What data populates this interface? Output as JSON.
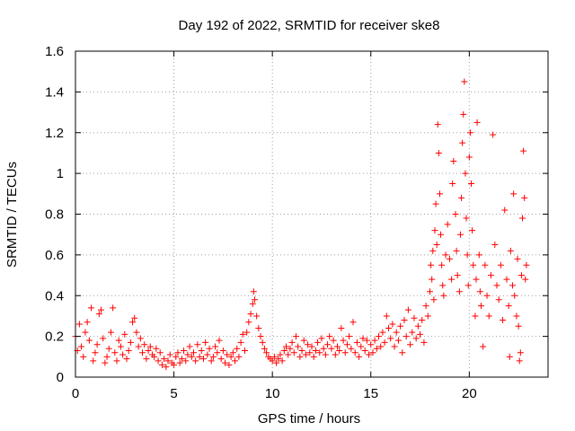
{
  "chart_data": {
    "type": "scatter",
    "title": "Day 192 of 2022, SRMTID for receiver ske8",
    "xlabel": "GPS time / hours",
    "ylabel": "SRMTID / TECUs",
    "xlim": [
      0,
      24
    ],
    "ylim": [
      0,
      1.6
    ],
    "xticks": [
      0,
      5,
      10,
      15,
      20
    ],
    "xtick_labels": [
      "0",
      "5",
      "10",
      "15",
      "20"
    ],
    "yticks": [
      0,
      0.2,
      0.4,
      0.6,
      0.8,
      1,
      1.2,
      1.4,
      1.6
    ],
    "ytick_labels": [
      "0",
      "0.2",
      "0.4",
      "0.6",
      "0.8",
      "1",
      "1.2",
      "1.4",
      "1.6"
    ],
    "grid": true,
    "marker": "+",
    "series_color": "#ff0000",
    "series": [
      {
        "name": "SRMTID",
        "points": [
          [
            0.0,
            0.2
          ],
          [
            0.1,
            0.13
          ],
          [
            0.2,
            0.26
          ],
          [
            0.3,
            0.15
          ],
          [
            0.4,
            0.1
          ],
          [
            0.5,
            0.22
          ],
          [
            0.6,
            0.27
          ],
          [
            0.7,
            0.18
          ],
          [
            0.8,
            0.34
          ],
          [
            0.9,
            0.08
          ],
          [
            1.0,
            0.12
          ],
          [
            1.1,
            0.16
          ],
          [
            1.2,
            0.31
          ],
          [
            1.3,
            0.33
          ],
          [
            1.4,
            0.19
          ],
          [
            1.5,
            0.07
          ],
          [
            1.6,
            0.1
          ],
          [
            1.7,
            0.14
          ],
          [
            1.8,
            0.22
          ],
          [
            1.9,
            0.34
          ],
          [
            2.0,
            0.12
          ],
          [
            2.1,
            0.08
          ],
          [
            2.2,
            0.18
          ],
          [
            2.3,
            0.15
          ],
          [
            2.4,
            0.11
          ],
          [
            2.5,
            0.21
          ],
          [
            2.6,
            0.09
          ],
          [
            2.7,
            0.13
          ],
          [
            2.8,
            0.17
          ],
          [
            2.9,
            0.27
          ],
          [
            3.0,
            0.29
          ],
          [
            3.1,
            0.22
          ],
          [
            3.2,
            0.15
          ],
          [
            3.3,
            0.19
          ],
          [
            3.4,
            0.12
          ],
          [
            3.5,
            0.16
          ],
          [
            3.6,
            0.09
          ],
          [
            3.7,
            0.13
          ],
          [
            3.8,
            0.15
          ],
          [
            3.9,
            0.11
          ],
          [
            4.0,
            0.1
          ],
          [
            4.1,
            0.14
          ],
          [
            4.2,
            0.08
          ],
          [
            4.3,
            0.12
          ],
          [
            4.4,
            0.06
          ],
          [
            4.5,
            0.09
          ],
          [
            4.6,
            0.05
          ],
          [
            4.7,
            0.08
          ],
          [
            4.8,
            0.11
          ],
          [
            4.9,
            0.07
          ],
          [
            5.0,
            0.06
          ],
          [
            5.1,
            0.1
          ],
          [
            5.2,
            0.12
          ],
          [
            5.3,
            0.07
          ],
          [
            5.4,
            0.09
          ],
          [
            5.5,
            0.13
          ],
          [
            5.6,
            0.08
          ],
          [
            5.7,
            0.11
          ],
          [
            5.8,
            0.15
          ],
          [
            5.9,
            0.1
          ],
          [
            6.0,
            0.12
          ],
          [
            6.1,
            0.08
          ],
          [
            6.2,
            0.16
          ],
          [
            6.3,
            0.1
          ],
          [
            6.4,
            0.13
          ],
          [
            6.5,
            0.09
          ],
          [
            6.6,
            0.17
          ],
          [
            6.7,
            0.11
          ],
          [
            6.8,
            0.14
          ],
          [
            6.9,
            0.08
          ],
          [
            7.0,
            0.1
          ],
          [
            7.1,
            0.15
          ],
          [
            7.2,
            0.12
          ],
          [
            7.3,
            0.18
          ],
          [
            7.4,
            0.09
          ],
          [
            7.5,
            0.13
          ],
          [
            7.6,
            0.07
          ],
          [
            7.7,
            0.11
          ],
          [
            7.8,
            0.06
          ],
          [
            7.9,
            0.1
          ],
          [
            8.0,
            0.12
          ],
          [
            8.1,
            0.08
          ],
          [
            8.2,
            0.14
          ],
          [
            8.3,
            0.1
          ],
          [
            8.4,
            0.17
          ],
          [
            8.5,
            0.21
          ],
          [
            8.6,
            0.13
          ],
          [
            8.7,
            0.22
          ],
          [
            8.8,
            0.27
          ],
          [
            8.9,
            0.31
          ],
          [
            9.0,
            0.36
          ],
          [
            9.05,
            0.42
          ],
          [
            9.1,
            0.38
          ],
          [
            9.2,
            0.3
          ],
          [
            9.3,
            0.24
          ],
          [
            9.4,
            0.2
          ],
          [
            9.5,
            0.17
          ],
          [
            9.6,
            0.14
          ],
          [
            9.7,
            0.12
          ],
          [
            9.8,
            0.1
          ],
          [
            9.9,
            0.09
          ],
          [
            10.0,
            0.08
          ],
          [
            10.1,
            0.1
          ],
          [
            10.2,
            0.07
          ],
          [
            10.3,
            0.09
          ],
          [
            10.4,
            0.11
          ],
          [
            10.5,
            0.08
          ],
          [
            10.6,
            0.13
          ],
          [
            10.7,
            0.15
          ],
          [
            10.8,
            0.11
          ],
          [
            10.9,
            0.14
          ],
          [
            11.0,
            0.17
          ],
          [
            11.1,
            0.12
          ],
          [
            11.2,
            0.2
          ],
          [
            11.3,
            0.15
          ],
          [
            11.4,
            0.1
          ],
          [
            11.5,
            0.13
          ],
          [
            11.6,
            0.18
          ],
          [
            11.7,
            0.11
          ],
          [
            11.8,
            0.16
          ],
          [
            11.9,
            0.12
          ],
          [
            12.0,
            0.15
          ],
          [
            12.1,
            0.1
          ],
          [
            12.2,
            0.13
          ],
          [
            12.3,
            0.17
          ],
          [
            12.4,
            0.12
          ],
          [
            12.5,
            0.19
          ],
          [
            12.6,
            0.14
          ],
          [
            12.7,
            0.11
          ],
          [
            12.8,
            0.16
          ],
          [
            12.9,
            0.2
          ],
          [
            13.0,
            0.14
          ],
          [
            13.1,
            0.18
          ],
          [
            13.2,
            0.11
          ],
          [
            13.3,
            0.15
          ],
          [
            13.4,
            0.13
          ],
          [
            13.5,
            0.24
          ],
          [
            13.6,
            0.18
          ],
          [
            13.7,
            0.12
          ],
          [
            13.8,
            0.16
          ],
          [
            13.9,
            0.2
          ],
          [
            14.0,
            0.14
          ],
          [
            14.1,
            0.27
          ],
          [
            14.2,
            0.12
          ],
          [
            14.3,
            0.17
          ],
          [
            14.4,
            0.1
          ],
          [
            14.5,
            0.15
          ],
          [
            14.6,
            0.19
          ],
          [
            14.7,
            0.13
          ],
          [
            14.8,
            0.18
          ],
          [
            14.9,
            0.11
          ],
          [
            15.0,
            0.16
          ],
          [
            15.1,
            0.12
          ],
          [
            15.2,
            0.18
          ],
          [
            15.3,
            0.14
          ],
          [
            15.4,
            0.2
          ],
          [
            15.5,
            0.15
          ],
          [
            15.6,
            0.22
          ],
          [
            15.7,
            0.17
          ],
          [
            15.8,
            0.3
          ],
          [
            15.9,
            0.24
          ],
          [
            16.0,
            0.19
          ],
          [
            16.1,
            0.26
          ],
          [
            16.2,
            0.15
          ],
          [
            16.3,
            0.22
          ],
          [
            16.4,
            0.18
          ],
          [
            16.5,
            0.25
          ],
          [
            16.6,
            0.12
          ],
          [
            16.7,
            0.28
          ],
          [
            16.8,
            0.2
          ],
          [
            16.9,
            0.33
          ],
          [
            17.0,
            0.16
          ],
          [
            17.1,
            0.22
          ],
          [
            17.2,
            0.29
          ],
          [
            17.3,
            0.19
          ],
          [
            17.4,
            0.25
          ],
          [
            17.5,
            0.21
          ],
          [
            17.6,
            0.28
          ],
          [
            17.7,
            0.17
          ],
          [
            17.8,
            0.35
          ],
          [
            17.9,
            0.3
          ],
          [
            18.0,
            0.42
          ],
          [
            18.05,
            0.55
          ],
          [
            18.1,
            0.48
          ],
          [
            18.15,
            0.62
          ],
          [
            18.2,
            0.38
          ],
          [
            18.25,
            0.72
          ],
          [
            18.3,
            0.85
          ],
          [
            18.35,
            0.65
          ],
          [
            18.4,
            1.24
          ],
          [
            18.45,
            1.1
          ],
          [
            18.5,
            0.9
          ],
          [
            18.55,
            0.7
          ],
          [
            18.6,
            0.55
          ],
          [
            18.65,
            0.45
          ],
          [
            18.7,
            0.4
          ],
          [
            18.8,
            0.6
          ],
          [
            18.9,
            0.75
          ],
          [
            19.0,
            0.58
          ],
          [
            19.1,
            0.48
          ],
          [
            19.15,
            0.95
          ],
          [
            19.2,
            1.06
          ],
          [
            19.3,
            0.8
          ],
          [
            19.35,
            0.62
          ],
          [
            19.4,
            0.5
          ],
          [
            19.5,
            0.42
          ],
          [
            19.55,
            0.7
          ],
          [
            19.6,
            0.88
          ],
          [
            19.65,
            1.15
          ],
          [
            19.7,
            1.29
          ],
          [
            19.75,
            1.45
          ],
          [
            19.8,
            1.0
          ],
          [
            19.85,
            0.78
          ],
          [
            19.9,
            0.6
          ],
          [
            19.95,
            0.45
          ],
          [
            20.0,
            1.08
          ],
          [
            20.05,
            1.2
          ],
          [
            20.1,
            0.95
          ],
          [
            20.15,
            0.72
          ],
          [
            20.2,
            0.55
          ],
          [
            20.3,
            0.3
          ],
          [
            20.35,
            0.48
          ],
          [
            20.4,
            1.25
          ],
          [
            20.5,
            0.6
          ],
          [
            20.55,
            0.42
          ],
          [
            20.6,
            0.35
          ],
          [
            20.7,
            0.15
          ],
          [
            20.8,
            0.55
          ],
          [
            20.9,
            0.4
          ],
          [
            21.0,
            0.3
          ],
          [
            21.1,
            0.5
          ],
          [
            21.2,
            1.19
          ],
          [
            21.3,
            0.65
          ],
          [
            21.4,
            0.45
          ],
          [
            21.5,
            0.38
          ],
          [
            21.6,
            0.55
          ],
          [
            21.7,
            0.28
          ],
          [
            21.8,
            0.82
          ],
          [
            21.9,
            0.48
          ],
          [
            22.0,
            0.35
          ],
          [
            22.05,
            0.1
          ],
          [
            22.1,
            0.62
          ],
          [
            22.2,
            0.45
          ],
          [
            22.25,
            0.9
          ],
          [
            22.3,
            0.4
          ],
          [
            22.4,
            0.3
          ],
          [
            22.45,
            0.58
          ],
          [
            22.5,
            0.25
          ],
          [
            22.55,
            0.08
          ],
          [
            22.6,
            0.12
          ],
          [
            22.65,
            0.5
          ],
          [
            22.7,
            0.78
          ],
          [
            22.75,
            1.11
          ],
          [
            22.8,
            0.88
          ],
          [
            22.85,
            0.48
          ],
          [
            22.9,
            0.55
          ]
        ]
      }
    ]
  }
}
